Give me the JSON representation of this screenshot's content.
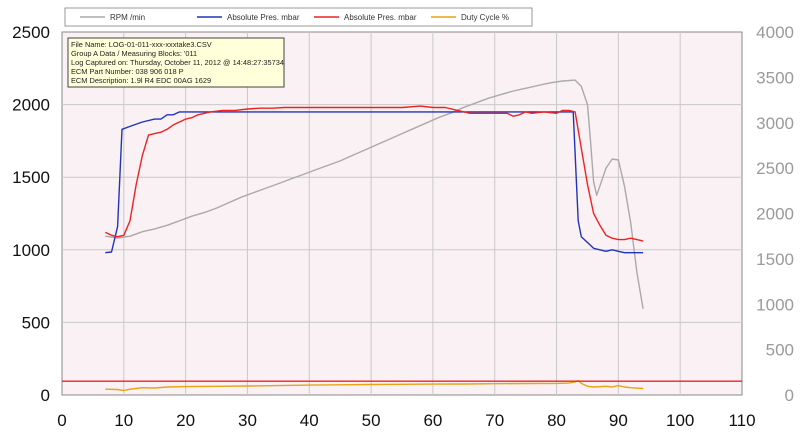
{
  "chart_data": {
    "type": "line",
    "legend": [
      {
        "name": "RPM /min",
        "color": "#aaaaaa"
      },
      {
        "name": "Absolute Pres. mbar",
        "color": "#2233bb"
      },
      {
        "name": "Absolute Pres. mbar",
        "color": "#ee2222"
      },
      {
        "name": "Duty Cycle %",
        "color": "#e8a317"
      }
    ],
    "info_box": [
      "File Name: LOG-01-011-xxx-xxxtake3.CSV",
      "Group A Data / Measuring Blocks: '011",
      "Log Captured on: Thursday, October 11, 2012 @ 14:48:27:35734",
      "ECM Part Number: 038 906 018 P",
      "ECM Description:  1.9l R4 EDC   00AG  1629"
    ],
    "x_ticks": [
      "0",
      "10",
      "20",
      "30",
      "40",
      "50",
      "60",
      "70",
      "80",
      "90",
      "100",
      "110"
    ],
    "y_left_ticks": [
      "0",
      "500",
      "1000",
      "1500",
      "2000",
      "2500"
    ],
    "y_right_ticks": [
      "0",
      "500",
      "1000",
      "1500",
      "2000",
      "2500",
      "3000",
      "3500",
      "4000"
    ],
    "xlim": [
      0,
      110
    ],
    "ylim_left": [
      0,
      2500
    ],
    "ylim_right": [
      0,
      4000
    ],
    "grid": true,
    "legend_position": "top",
    "series": [
      {
        "name": "RPM /min",
        "axis": "right",
        "color": "#aaaaaa",
        "points": [
          [
            7,
            1750
          ],
          [
            9,
            1730
          ],
          [
            11,
            1750
          ],
          [
            13,
            1800
          ],
          [
            15,
            1830
          ],
          [
            17,
            1870
          ],
          [
            19,
            1920
          ],
          [
            21,
            1970
          ],
          [
            23,
            2010
          ],
          [
            25,
            2060
          ],
          [
            27,
            2120
          ],
          [
            29,
            2180
          ],
          [
            31,
            2230
          ],
          [
            33,
            2280
          ],
          [
            35,
            2330
          ],
          [
            37,
            2380
          ],
          [
            39,
            2430
          ],
          [
            41,
            2480
          ],
          [
            43,
            2530
          ],
          [
            45,
            2580
          ],
          [
            47,
            2640
          ],
          [
            49,
            2700
          ],
          [
            51,
            2760
          ],
          [
            53,
            2820
          ],
          [
            55,
            2880
          ],
          [
            57,
            2940
          ],
          [
            59,
            3000
          ],
          [
            61,
            3060
          ],
          [
            63,
            3110
          ],
          [
            65,
            3170
          ],
          [
            67,
            3220
          ],
          [
            69,
            3270
          ],
          [
            71,
            3310
          ],
          [
            73,
            3350
          ],
          [
            75,
            3380
          ],
          [
            77,
            3410
          ],
          [
            79,
            3440
          ],
          [
            81,
            3460
          ],
          [
            83,
            3470
          ],
          [
            84,
            3400
          ],
          [
            85,
            3200
          ],
          [
            85.5,
            2800
          ],
          [
            86,
            2350
          ],
          [
            86.5,
            2200
          ],
          [
            87,
            2300
          ],
          [
            88,
            2500
          ],
          [
            89,
            2600
          ],
          [
            90,
            2590
          ],
          [
            91,
            2300
          ],
          [
            92,
            1900
          ],
          [
            93,
            1350
          ],
          [
            94,
            950
          ]
        ]
      },
      {
        "name": "Absolute Pres. mbar",
        "axis": "left",
        "color": "#2233bb",
        "points": [
          [
            7,
            980
          ],
          [
            8,
            985
          ],
          [
            9,
            1160
          ],
          [
            9.7,
            1830
          ],
          [
            11,
            1850
          ],
          [
            13,
            1880
          ],
          [
            15,
            1900
          ],
          [
            16,
            1900
          ],
          [
            17,
            1930
          ],
          [
            18,
            1930
          ],
          [
            19,
            1950
          ],
          [
            25,
            1950
          ],
          [
            30,
            1950
          ],
          [
            40,
            1950
          ],
          [
            50,
            1950
          ],
          [
            60,
            1950
          ],
          [
            70,
            1950
          ],
          [
            80,
            1950
          ],
          [
            82,
            1950
          ],
          [
            82.7,
            1950
          ],
          [
            83.5,
            1200
          ],
          [
            84,
            1090
          ],
          [
            85,
            1050
          ],
          [
            86,
            1010
          ],
          [
            87,
            1000
          ],
          [
            88,
            990
          ],
          [
            89,
            1000
          ],
          [
            90,
            990
          ],
          [
            91,
            980
          ],
          [
            94,
            980
          ]
        ]
      },
      {
        "name": "Absolute Pres. mbar",
        "axis": "left",
        "color": "#ee2222",
        "points": [
          [
            7,
            1120
          ],
          [
            8,
            1100
          ],
          [
            9,
            1090
          ],
          [
            10,
            1100
          ],
          [
            11,
            1200
          ],
          [
            12,
            1450
          ],
          [
            13,
            1650
          ],
          [
            14,
            1790
          ],
          [
            15,
            1800
          ],
          [
            16,
            1810
          ],
          [
            17,
            1830
          ],
          [
            18,
            1860
          ],
          [
            19,
            1880
          ],
          [
            20,
            1900
          ],
          [
            21,
            1910
          ],
          [
            22,
            1930
          ],
          [
            24,
            1950
          ],
          [
            26,
            1960
          ],
          [
            28,
            1960
          ],
          [
            30,
            1970
          ],
          [
            32,
            1975
          ],
          [
            34,
            1975
          ],
          [
            36,
            1980
          ],
          [
            38,
            1980
          ],
          [
            40,
            1980
          ],
          [
            45,
            1980
          ],
          [
            50,
            1980
          ],
          [
            55,
            1980
          ],
          [
            58,
            1990
          ],
          [
            60,
            1980
          ],
          [
            62,
            1980
          ],
          [
            64,
            1960
          ],
          [
            66,
            1940
          ],
          [
            68,
            1940
          ],
          [
            70,
            1940
          ],
          [
            72,
            1940
          ],
          [
            73,
            1920
          ],
          [
            74,
            1930
          ],
          [
            75,
            1950
          ],
          [
            76,
            1940
          ],
          [
            78,
            1950
          ],
          [
            80,
            1940
          ],
          [
            81,
            1960
          ],
          [
            82,
            1960
          ],
          [
            83,
            1950
          ],
          [
            84,
            1700
          ],
          [
            85,
            1450
          ],
          [
            86,
            1250
          ],
          [
            87,
            1170
          ],
          [
            88,
            1100
          ],
          [
            89,
            1080
          ],
          [
            90,
            1070
          ],
          [
            91,
            1070
          ],
          [
            92,
            1080
          ],
          [
            93,
            1070
          ],
          [
            94,
            1060
          ]
        ]
      },
      {
        "name": "Duty Cycle %",
        "axis": "left",
        "color": "#e8a317",
        "points": [
          [
            7,
            40
          ],
          [
            9,
            38
          ],
          [
            10,
            30
          ],
          [
            11,
            40
          ],
          [
            12,
            45
          ],
          [
            13,
            50
          ],
          [
            15,
            48
          ],
          [
            17,
            55
          ],
          [
            20,
            58
          ],
          [
            25,
            60
          ],
          [
            30,
            62
          ],
          [
            35,
            65
          ],
          [
            40,
            68
          ],
          [
            45,
            70
          ],
          [
            50,
            72
          ],
          [
            55,
            74
          ],
          [
            60,
            75
          ],
          [
            65,
            76
          ],
          [
            70,
            78
          ],
          [
            75,
            79
          ],
          [
            80,
            80
          ],
          [
            82,
            82
          ],
          [
            83,
            90
          ],
          [
            83.5,
            100
          ],
          [
            84,
            80
          ],
          [
            85,
            60
          ],
          [
            86,
            55
          ],
          [
            88,
            60
          ],
          [
            89,
            55
          ],
          [
            90,
            65
          ],
          [
            91,
            55
          ],
          [
            92,
            50
          ],
          [
            94,
            45
          ]
        ]
      },
      {
        "name": "",
        "axis": "left",
        "color": "#ee2222",
        "points": [
          [
            -1,
            95
          ],
          [
            111,
            95
          ]
        ]
      }
    ]
  }
}
